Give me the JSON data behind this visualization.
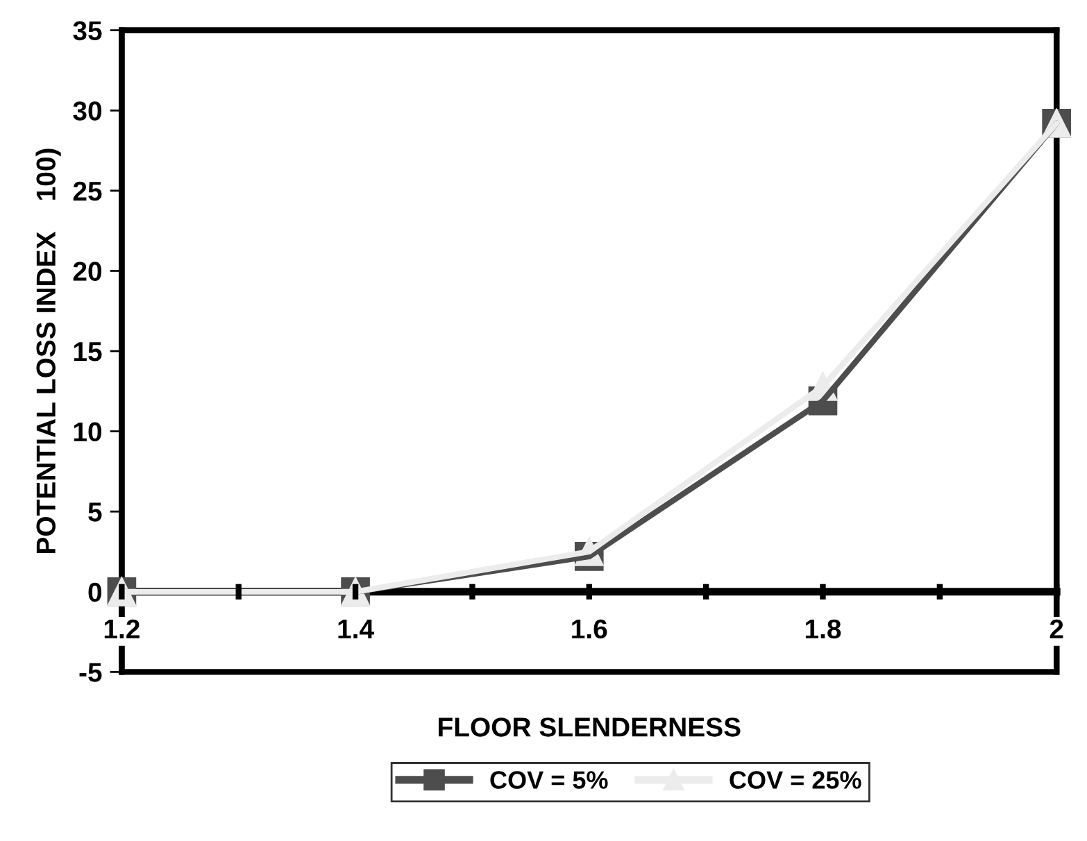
{
  "chart_data": {
    "type": "line",
    "xlabel": "FLOOR SLENDERNESS",
    "ylabel": "POTENTIAL LOSS INDEX    100)",
    "x": [
      1.2,
      1.4,
      1.6,
      1.8,
      2.0
    ],
    "series": [
      {
        "name": "COV = 5%",
        "color": "#4d4d4d",
        "marker": "square",
        "values": [
          0,
          0,
          2.2,
          11.9,
          29.2
        ]
      },
      {
        "name": "COV = 25%",
        "color": "#ececec",
        "marker": "triangle",
        "values": [
          0,
          0,
          2.5,
          12.8,
          29.2
        ]
      }
    ],
    "xlim": [
      1.2,
      2.0
    ],
    "xticks": [
      1.2,
      {
        "value": 1.3,
        "label": null
      },
      1.4,
      {
        "value": 1.5,
        "label": null
      },
      1.6,
      {
        "value": 1.7,
        "label": null
      },
      1.8,
      {
        "value": 1.9,
        "label": null
      },
      {
        "value": 2.0,
        "label": "2"
      }
    ],
    "ylim": [
      -5,
      35
    ],
    "yticks": [
      -5,
      0,
      5,
      10,
      15,
      20,
      25,
      30,
      35
    ],
    "grid": false,
    "legend": "bottom",
    "line_style": "solid"
  }
}
